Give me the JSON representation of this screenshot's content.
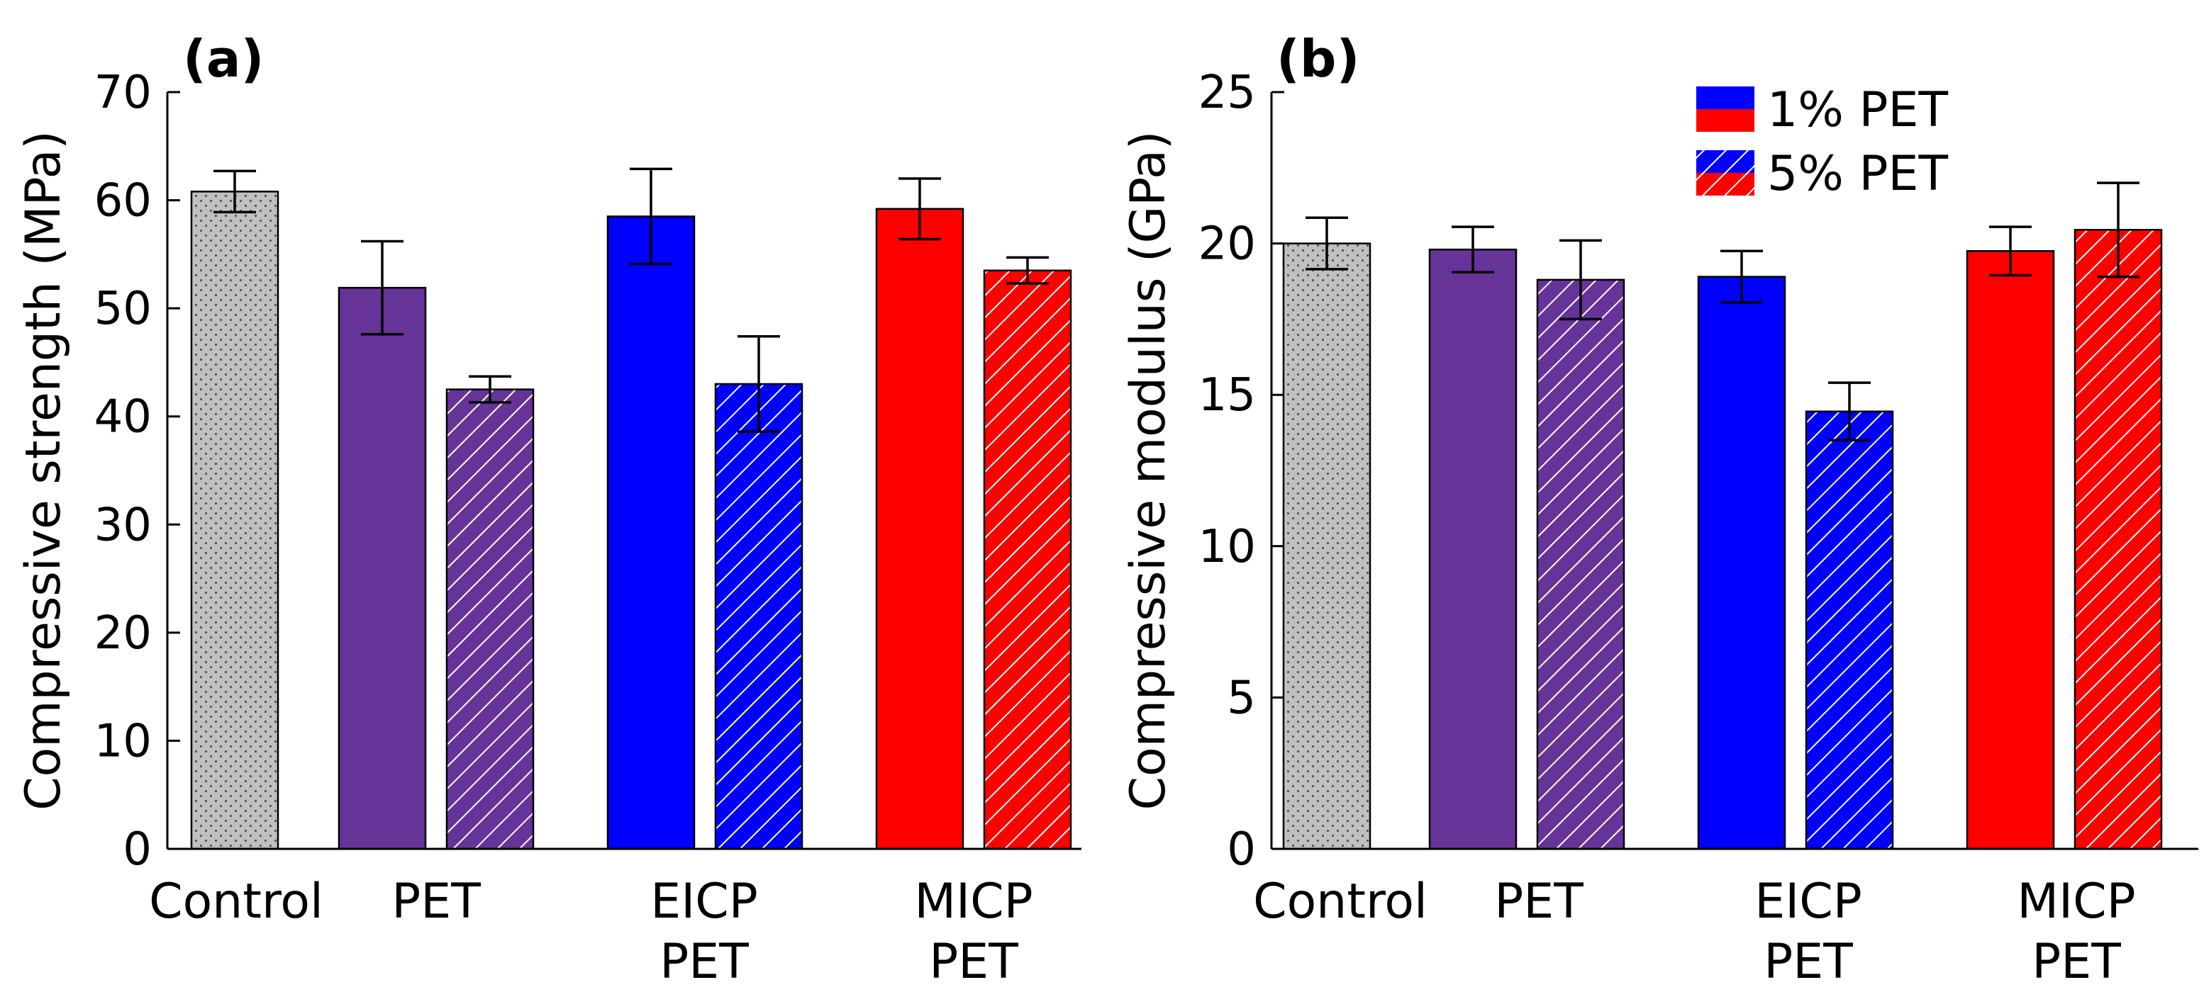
{
  "chart_data": [
    {
      "type": "bar",
      "panel_label": "(a)",
      "title": "",
      "xlabel": "",
      "ylabel": "Compressive strength (MPa)",
      "ylim": [
        0,
        70
      ],
      "yticks": [
        0,
        10,
        20,
        30,
        40,
        50,
        60,
        70
      ],
      "grid": false,
      "categories": [
        {
          "lines": [
            "Control"
          ]
        },
        {
          "lines": [
            "PET"
          ]
        },
        {
          "lines": [
            "EICP",
            "PET"
          ]
        },
        {
          "lines": [
            "MICP",
            "PET"
          ]
        }
      ],
      "bars": [
        {
          "name": "Control",
          "category": 0,
          "value": 60.8,
          "error": 1.9,
          "color": "#c0c0c0",
          "pattern": "dots"
        },
        {
          "name": "PET 1%",
          "category": 1,
          "value": 51.9,
          "error": 4.3,
          "color": "#663399",
          "pattern": "solid"
        },
        {
          "name": "PET 5%",
          "category": 1,
          "value": 42.5,
          "error": 1.2,
          "color": "#663399",
          "pattern": "hatch"
        },
        {
          "name": "EICP PET 1%",
          "category": 2,
          "value": 58.5,
          "error": 4.4,
          "color": "#0000ff",
          "pattern": "solid"
        },
        {
          "name": "EICP PET 5%",
          "category": 2,
          "value": 43.0,
          "error": 4.4,
          "color": "#0000ff",
          "pattern": "hatch"
        },
        {
          "name": "MICP PET 1%",
          "category": 3,
          "value": 59.2,
          "error": 2.8,
          "color": "#ff0000",
          "pattern": "solid"
        },
        {
          "name": "MICP PET 5%",
          "category": 3,
          "value": 53.5,
          "error": 1.2,
          "color": "#ff0000",
          "pattern": "hatch"
        }
      ]
    },
    {
      "type": "bar",
      "panel_label": "(b)",
      "title": "",
      "xlabel": "",
      "ylabel": "Compressive modulus (GPa)",
      "ylim": [
        0,
        25
      ],
      "yticks": [
        0,
        5,
        10,
        15,
        20,
        25
      ],
      "grid": false,
      "legend_position": "top-right",
      "categories": [
        {
          "lines": [
            "Control"
          ]
        },
        {
          "lines": [
            "PET"
          ]
        },
        {
          "lines": [
            "EICP",
            "PET"
          ]
        },
        {
          "lines": [
            "MICP",
            "PET"
          ]
        }
      ],
      "bars": [
        {
          "name": "Control",
          "category": 0,
          "value": 20.0,
          "error": 0.85,
          "color": "#c0c0c0",
          "pattern": "dots"
        },
        {
          "name": "PET 1%",
          "category": 1,
          "value": 19.8,
          "error": 0.75,
          "color": "#663399",
          "pattern": "solid"
        },
        {
          "name": "PET 5%",
          "category": 1,
          "value": 18.8,
          "error": 1.3,
          "color": "#663399",
          "pattern": "hatch"
        },
        {
          "name": "EICP PET 1%",
          "category": 2,
          "value": 18.9,
          "error": 0.85,
          "color": "#0000ff",
          "pattern": "solid"
        },
        {
          "name": "EICP PET 5%",
          "category": 2,
          "value": 14.45,
          "error": 0.95,
          "color": "#0000ff",
          "pattern": "hatch"
        },
        {
          "name": "MICP PET 1%",
          "category": 3,
          "value": 19.75,
          "error": 0.8,
          "color": "#ff0000",
          "pattern": "solid"
        },
        {
          "name": "MICP PET 5%",
          "category": 3,
          "value": 20.45,
          "error": 1.55,
          "color": "#ff0000",
          "pattern": "hatch"
        }
      ],
      "legend": [
        {
          "label": "1% PET",
          "pattern": "solid",
          "colors": [
            "#0000ff",
            "#ff0000"
          ]
        },
        {
          "label": "5% PET",
          "pattern": "hatch",
          "colors": [
            "#0000ff",
            "#ff0000"
          ]
        }
      ]
    }
  ]
}
